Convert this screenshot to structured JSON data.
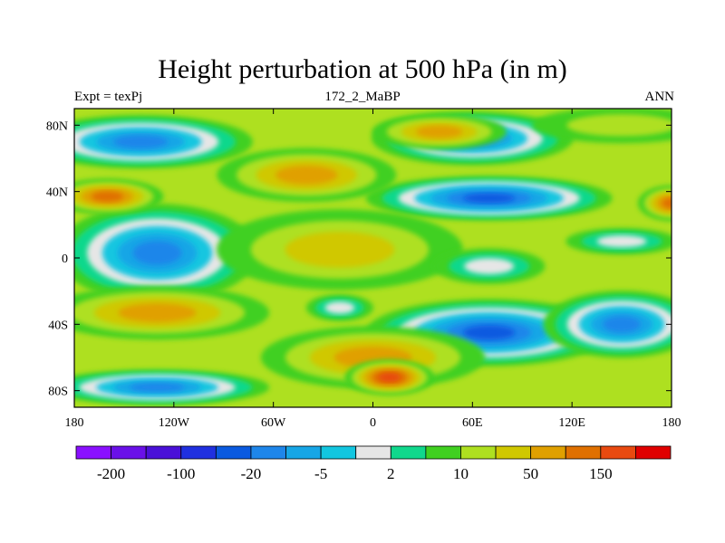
{
  "chart_data": {
    "type": "heatmap",
    "title": "Height perturbation at 500 hPa (in m)",
    "left_string": "Expt = texPj",
    "center_string": "172_2_MaBP",
    "right_string": "ANN",
    "xlim": [
      -180,
      180
    ],
    "ylim": [
      -90,
      90
    ],
    "x_ticks": [
      {
        "value": -180,
        "label": "180"
      },
      {
        "value": -120,
        "label": "120W"
      },
      {
        "value": -60,
        "label": "60W"
      },
      {
        "value": 0,
        "label": "0"
      },
      {
        "value": 60,
        "label": "60E"
      },
      {
        "value": 120,
        "label": "120E"
      },
      {
        "value": 180,
        "label": "180"
      }
    ],
    "y_ticks": [
      {
        "value": 80,
        "label": "80N"
      },
      {
        "value": 40,
        "label": "40N"
      },
      {
        "value": 0,
        "label": "0"
      },
      {
        "value": -40,
        "label": "40S"
      },
      {
        "value": -80,
        "label": "80S"
      }
    ],
    "colorbar": {
      "colors": [
        "#8a10ff",
        "#6a10e8",
        "#4a10d8",
        "#2030e0",
        "#0a5ae0",
        "#1e86ea",
        "#16a6e6",
        "#12c6e0",
        "#e6e6e6",
        "#10d88c",
        "#40d020",
        "#aee020",
        "#d0c800",
        "#e0a000",
        "#e07000",
        "#e84a10",
        "#e00000"
      ],
      "labels": [
        {
          "boundary": 1,
          "text": "-200"
        },
        {
          "boundary": 3,
          "text": "-100"
        },
        {
          "boundary": 5,
          "text": "-20"
        },
        {
          "boundary": 7,
          "text": "-5"
        },
        {
          "boundary": 9,
          "text": "2"
        },
        {
          "boundary": 11,
          "text": "10"
        },
        {
          "boundary": 13,
          "text": "50"
        },
        {
          "boundary": 15,
          "text": "150"
        }
      ]
    },
    "fields": [
      {
        "level": 5,
        "lon": -140,
        "lat": 70,
        "sx": 50,
        "sy": 12
      },
      {
        "level": 5,
        "lon": 60,
        "lat": 72,
        "sx": 45,
        "sy": 12
      },
      {
        "level": 4,
        "lon": 70,
        "lat": 36,
        "sx": 55,
        "sy": 10
      },
      {
        "level": 5,
        "lon": -130,
        "lat": 3,
        "sx": 45,
        "sy": 22
      },
      {
        "level": 4,
        "lon": 70,
        "lat": -45,
        "sx": 55,
        "sy": 15
      },
      {
        "level": 5,
        "lon": 150,
        "lat": -40,
        "sx": 35,
        "sy": 15
      },
      {
        "level": 5,
        "lon": -130,
        "lat": -78,
        "sx": 50,
        "sy": 8
      },
      {
        "level": 14,
        "lon": -160,
        "lat": 37,
        "sx": 25,
        "sy": 8
      },
      {
        "level": 14,
        "lon": 180,
        "lat": 33,
        "sx": 15,
        "sy": 8
      },
      {
        "level": 13,
        "lon": -130,
        "lat": -33,
        "sx": 50,
        "sy": 12
      },
      {
        "level": 13,
        "lon": 0,
        "lat": -60,
        "sx": 50,
        "sy": 14
      },
      {
        "level": 15,
        "lon": 10,
        "lat": -72,
        "sx": 20,
        "sy": 8
      },
      {
        "level": 13,
        "lon": 40,
        "lat": 76,
        "sx": 30,
        "sy": 8
      },
      {
        "level": 13,
        "lon": -40,
        "lat": 50,
        "sx": 40,
        "sy": 12
      },
      {
        "level": 12,
        "lon": -20,
        "lat": 5,
        "sx": 55,
        "sy": 18
      },
      {
        "level": 11,
        "lon": 150,
        "lat": 80,
        "sx": 40,
        "sy": 8
      },
      {
        "level": 8,
        "lon": 70,
        "lat": -5,
        "sx": 25,
        "sy": 8
      },
      {
        "level": 8,
        "lon": -20,
        "lat": -30,
        "sx": 15,
        "sy": 6
      },
      {
        "level": 8,
        "lon": 150,
        "lat": 10,
        "sx": 25,
        "sy": 6
      }
    ]
  }
}
